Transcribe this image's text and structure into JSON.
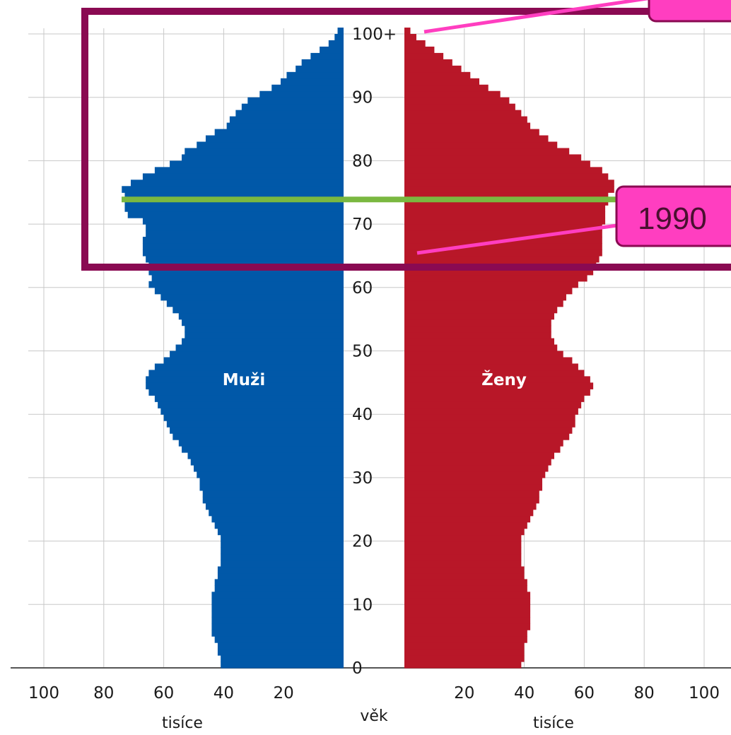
{
  "chart_data": {
    "type": "bar",
    "orientation": "horizontal",
    "layout": "population-pyramid",
    "age_axis": {
      "label": "věk",
      "ticks": [
        "0",
        "10",
        "20",
        "30",
        "40",
        "50",
        "60",
        "70",
        "80",
        "90",
        "100+"
      ],
      "range": [
        0,
        100
      ]
    },
    "value_axis": {
      "label": "tisíce",
      "ticks_left": [
        "100",
        "80",
        "60",
        "40",
        "20"
      ],
      "ticks_right": [
        "20",
        "40",
        "60",
        "80",
        "100"
      ],
      "range": [
        0,
        100
      ]
    },
    "grid": true,
    "series": [
      {
        "name": "Muži",
        "side": "left",
        "color": "#0158a8",
        "values": [
          41,
          41,
          42,
          42,
          43,
          44,
          44,
          44,
          44,
          44,
          44,
          44,
          43,
          43,
          42,
          42,
          41,
          41,
          41,
          41,
          41,
          42,
          43,
          44,
          45,
          46,
          47,
          47,
          48,
          48,
          49,
          50,
          51,
          52,
          54,
          55,
          57,
          58,
          59,
          60,
          61,
          62,
          63,
          65,
          66,
          66,
          65,
          63,
          60,
          58,
          56,
          54,
          53,
          53,
          54,
          55,
          57,
          59,
          61,
          63,
          65,
          64,
          65,
          65,
          66,
          67,
          67,
          67,
          66,
          66,
          67,
          72,
          73,
          73,
          73,
          74,
          71,
          67,
          63,
          58,
          54,
          53,
          49,
          46,
          43,
          39,
          38,
          36,
          34,
          32,
          28,
          24,
          21,
          19,
          16,
          14,
          11,
          8,
          5,
          3,
          2
        ]
      },
      {
        "name": "Ženy",
        "side": "right",
        "color": "#b81728",
        "values": [
          39,
          40,
          40,
          40,
          41,
          41,
          42,
          42,
          42,
          42,
          42,
          42,
          41,
          41,
          40,
          40,
          39,
          39,
          39,
          39,
          39,
          40,
          41,
          42,
          43,
          44,
          45,
          45,
          46,
          46,
          47,
          48,
          49,
          50,
          52,
          53,
          55,
          56,
          57,
          57,
          58,
          59,
          60,
          62,
          63,
          62,
          60,
          58,
          56,
          53,
          51,
          50,
          49,
          49,
          49,
          50,
          51,
          53,
          54,
          56,
          58,
          61,
          63,
          64,
          65,
          66,
          66,
          66,
          66,
          66,
          67,
          67,
          67,
          68,
          68,
          70,
          70,
          68,
          66,
          62,
          59,
          55,
          51,
          48,
          45,
          42,
          41,
          39,
          37,
          35,
          32,
          28,
          25,
          22,
          19,
          16,
          13,
          10,
          7,
          4,
          2
        ]
      }
    ],
    "marker_line": {
      "age": 74,
      "color": "#7ab840"
    },
    "annotations": [
      {
        "text": "1990",
        "color": "#ff3ec0"
      }
    ],
    "highlight_box": {
      "age_range": [
        62,
        100
      ],
      "color": "#8a0a52"
    }
  }
}
